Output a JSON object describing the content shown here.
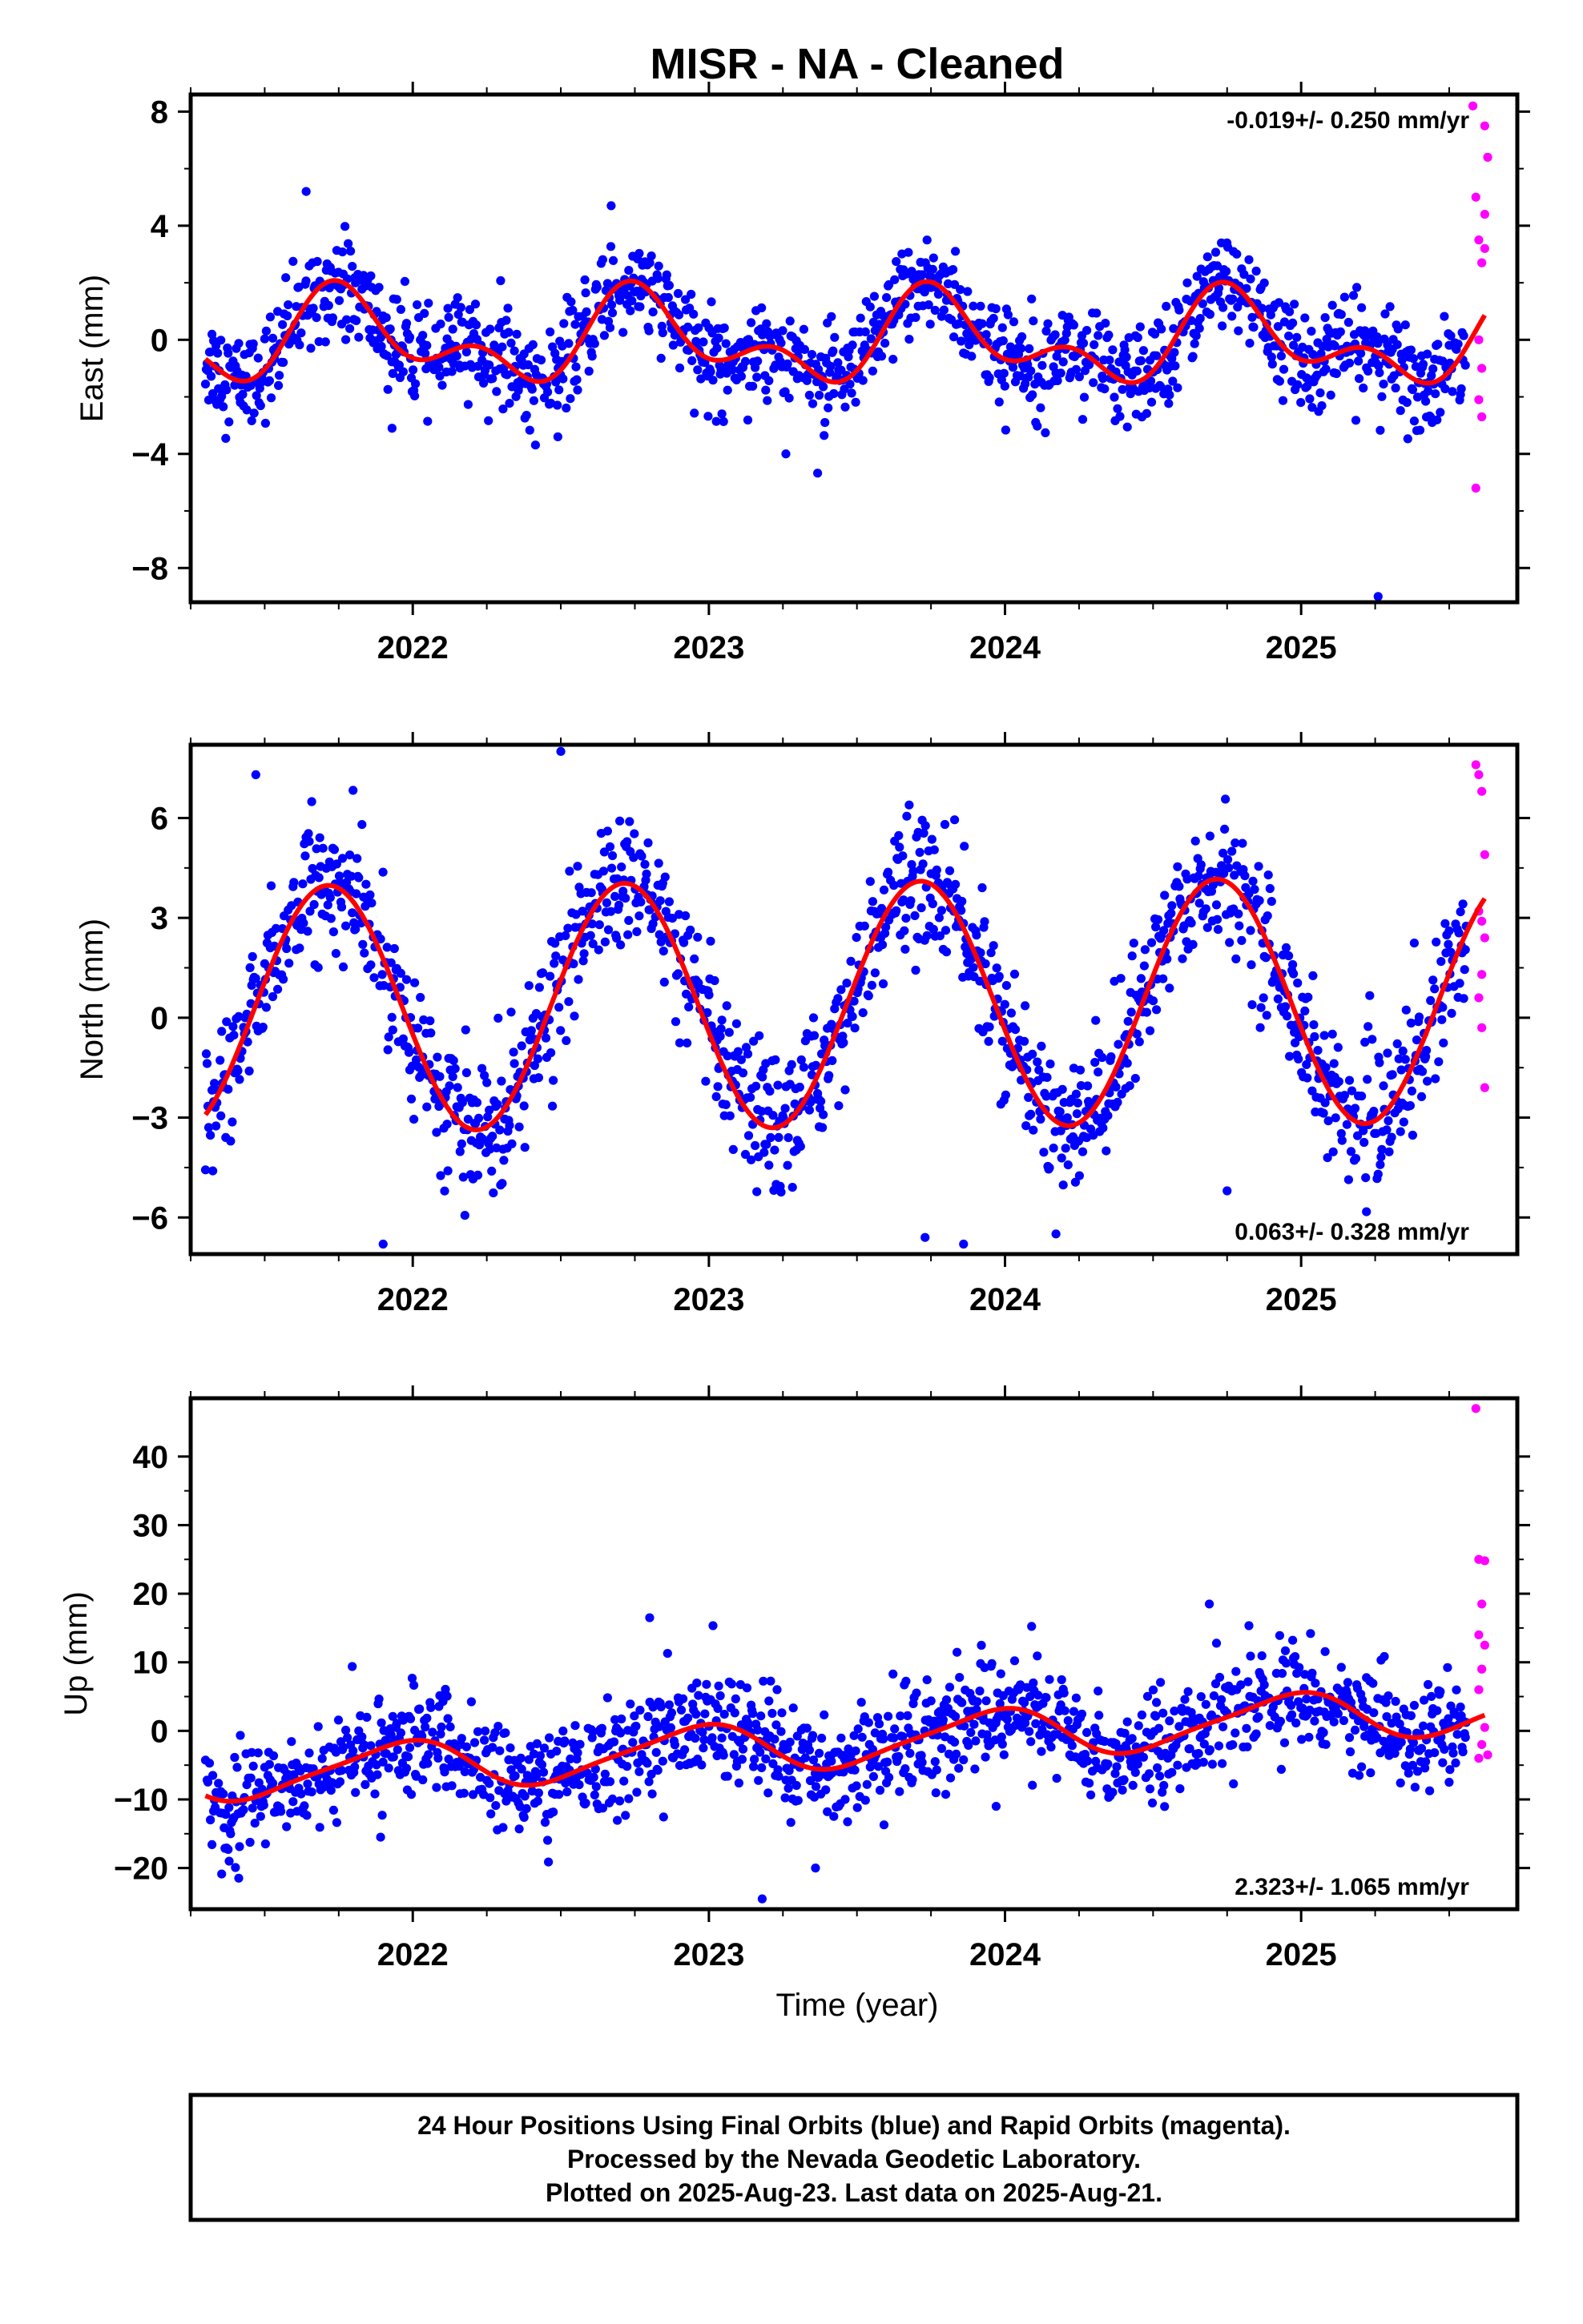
{
  "title": "MISR  - NA - Cleaned",
  "footer": {
    "line1": "24 Hour Positions Using Final Orbits (blue) and Rapid Orbits (magenta).",
    "line2": "Processed by the Nevada Geodetic Laboratory.",
    "line3": "Plotted on 2025-Aug-23. Last data on 2025-Aug-21."
  },
  "colors": {
    "final": "#0000ff",
    "rapid": "#ff00ff",
    "model": "#ff0000",
    "frame": "#000000"
  },
  "chart_data": [
    {
      "type": "scatter",
      "ylabel": "East (mm)",
      "xlabel": "",
      "xlim": [
        2021.25,
        2025.73
      ],
      "ylim": [
        -9.2,
        8.6
      ],
      "xticks": [
        2022,
        2023,
        2024,
        2025
      ],
      "xtick_labels": [
        "2022",
        "2023",
        "2024",
        "2025"
      ],
      "yticks": [
        -8,
        -4,
        0,
        4,
        8
      ],
      "ytick_labels": [
        "−8",
        "−4",
        "0",
        "4",
        "8"
      ],
      "rate_label": "-0.019+/- 0.250 mm/yr",
      "rate_position": "top-right",
      "model": {
        "mean": -0.02,
        "rate": -0.019,
        "annual": [
          0.2,
          -1.2
        ],
        "semiannual": [
          -0.85,
          0.3
        ],
        "noise": 0.85
      },
      "rapid": [
        [
          2025.58,
          8.2
        ],
        [
          2025.59,
          5.0
        ],
        [
          2025.6,
          3.5
        ],
        [
          2025.6,
          0.0
        ],
        [
          2025.61,
          -1.0
        ],
        [
          2025.61,
          -2.7
        ],
        [
          2025.59,
          -5.2
        ],
        [
          2025.62,
          7.5
        ],
        [
          2025.62,
          3.2
        ],
        [
          2025.63,
          6.4
        ],
        [
          2025.62,
          4.4
        ],
        [
          2025.6,
          -2.1
        ],
        [
          2025.61,
          2.7
        ]
      ],
      "outliers": [
        [
          2025.26,
          -9.0
        ],
        [
          2022.67,
          4.7
        ],
        [
          2021.64,
          5.2
        ],
        [
          2023.26,
          -4.0
        ],
        [
          2022.49,
          -3.4
        ],
        [
          2021.93,
          -3.1
        ]
      ],
      "series": [
        {
          "name": "Final Orbits (blue)"
        },
        {
          "name": "Rapid Orbits (magenta)"
        }
      ]
    },
    {
      "type": "scatter",
      "ylabel": "North (mm)",
      "xlabel": "",
      "xlim": [
        2021.25,
        2025.73
      ],
      "ylim": [
        -7.1,
        8.2
      ],
      "xticks": [
        2022,
        2023,
        2024,
        2025
      ],
      "xtick_labels": [
        "2022",
        "2023",
        "2024",
        "2025"
      ],
      "yticks": [
        -6,
        -3,
        0,
        3,
        6
      ],
      "ytick_labels": [
        "−6",
        "−3",
        "0",
        "3",
        "6"
      ],
      "rate_label": "0.063+/- 0.328 mm/yr",
      "rate_position": "bottom-right",
      "model": {
        "mean": 0.4,
        "rate": 0.063,
        "annual": [
          -0.8,
          -3.6
        ],
        "semiannual": [
          0.0,
          0.0
        ],
        "noise": 1.0
      },
      "rapid": [
        [
          2025.59,
          7.6
        ],
        [
          2025.6,
          7.3
        ],
        [
          2025.61,
          6.8
        ],
        [
          2025.62,
          4.9
        ],
        [
          2025.6,
          3.2
        ],
        [
          2025.61,
          2.9
        ],
        [
          2025.62,
          2.4
        ],
        [
          2025.61,
          1.3
        ],
        [
          2025.6,
          0.6
        ],
        [
          2025.61,
          -0.3
        ],
        [
          2025.62,
          -2.1
        ]
      ],
      "outliers": [
        [
          2021.9,
          -6.8
        ],
        [
          2023.73,
          -6.6
        ],
        [
          2023.86,
          -6.8
        ],
        [
          2022.5,
          8.0
        ],
        [
          2021.47,
          7.3
        ],
        [
          2024.75,
          -5.2
        ],
        [
          2025.26,
          -4.7
        ]
      ],
      "series": [
        {
          "name": "Final Orbits (blue)"
        },
        {
          "name": "Rapid Orbits (magenta)"
        }
      ]
    },
    {
      "type": "scatter",
      "ylabel": "Up (mm)",
      "xlabel": "Time (year)",
      "xlim": [
        2021.25,
        2025.73
      ],
      "ylim": [
        -26.0,
        48.5
      ],
      "xticks": [
        2022,
        2023,
        2024,
        2025
      ],
      "xtick_labels": [
        "2022",
        "2023",
        "2024",
        "2025"
      ],
      "yticks": [
        -20,
        -10,
        0,
        10,
        20,
        30,
        40
      ],
      "ytick_labels": [
        "−20",
        "−10",
        "0",
        "10",
        "20",
        "30",
        "40"
      ],
      "rate_label": "2.323+/- 1.065 mm/yr",
      "rate_position": "bottom-right",
      "model": {
        "mean": -1.6,
        "rate": 2.323,
        "annual": [
          3.3,
          -1.1
        ],
        "semiannual": [
          0.4,
          0.6
        ],
        "noise": 3.8
      },
      "rapid": [
        [
          2025.59,
          47.0
        ],
        [
          2025.6,
          25.0
        ],
        [
          2025.62,
          24.8
        ],
        [
          2025.61,
          18.5
        ],
        [
          2025.6,
          14.0
        ],
        [
          2025.62,
          12.5
        ],
        [
          2025.61,
          9.0
        ],
        [
          2025.6,
          6.0
        ],
        [
          2025.62,
          0.5
        ],
        [
          2025.61,
          -2.0
        ],
        [
          2025.63,
          -3.5
        ],
        [
          2025.6,
          -4.0
        ]
      ],
      "outliers": [
        [
          2023.18,
          -24.5
        ],
        [
          2021.38,
          -19.0
        ],
        [
          2022.8,
          16.5
        ],
        [
          2024.69,
          18.5
        ],
        [
          2023.36,
          -20.0
        ],
        [
          2023.97,
          -11.0
        ]
      ],
      "series": [
        {
          "name": "Final Orbits (blue)"
        },
        {
          "name": "Rapid Orbits (magenta)"
        }
      ]
    }
  ]
}
